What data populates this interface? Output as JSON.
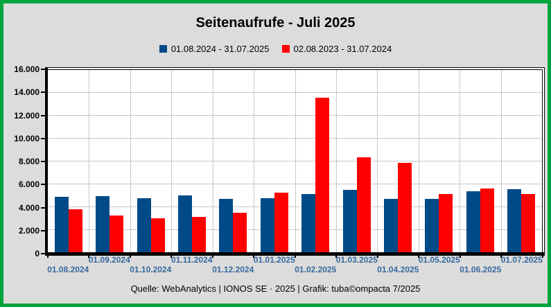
{
  "title": "Seitenaufrufe - Juli 2025",
  "legend": [
    {
      "label": "01.08.2024 - 31.07.2025",
      "color": "#004a87"
    },
    {
      "label": "02.08.2023 - 31.07.2024",
      "color": "#ff0000"
    }
  ],
  "footer": "Quelle: WebAnalytics | IONOS SE · 2025 | Grafik: tuba©ompacta 7/2025",
  "colors": {
    "frame_border": "#00a43c",
    "background": "#dcdcdc",
    "plot_background": "#ffffff",
    "gridline": "#c8c8c8",
    "axis": "#000000",
    "x_label": "#35689e",
    "series_blue": "#004a87",
    "series_red": "#ff0000"
  },
  "chart_data": {
    "type": "bar",
    "title": "Seitenaufrufe - Juli 2025",
    "categories": [
      "01.08.2024",
      "01.09.2024",
      "01.10.2024",
      "01.11.2024",
      "01.12.2024",
      "01.01.2025",
      "01.02.2025",
      "01.03.2025",
      "01.04.2025",
      "01.05.2025",
      "01.06.2025",
      "01.07.2025"
    ],
    "series": [
      {
        "name": "01.08.2024 - 31.07.2025",
        "color": "#004a87",
        "values": [
          4900,
          5000,
          4800,
          5050,
          4700,
          4800,
          5150,
          5500,
          4750,
          4750,
          5400,
          5550
        ]
      },
      {
        "name": "02.08.2023 - 31.07.2024",
        "color": "#ff0000",
        "values": [
          3800,
          3300,
          3050,
          3150,
          3500,
          5300,
          13600,
          8350,
          7850,
          5150,
          5650,
          5150
        ]
      }
    ],
    "xlabel": "",
    "ylabel": "",
    "ylim": [
      0,
      16000
    ],
    "ytick_step": 2000,
    "ytick_labels": [
      "0",
      "2.000",
      "4.000",
      "6.000",
      "8.000",
      "10.000",
      "12.000",
      "14.000",
      "16.000"
    ],
    "grid": true,
    "legend_position": "top"
  }
}
